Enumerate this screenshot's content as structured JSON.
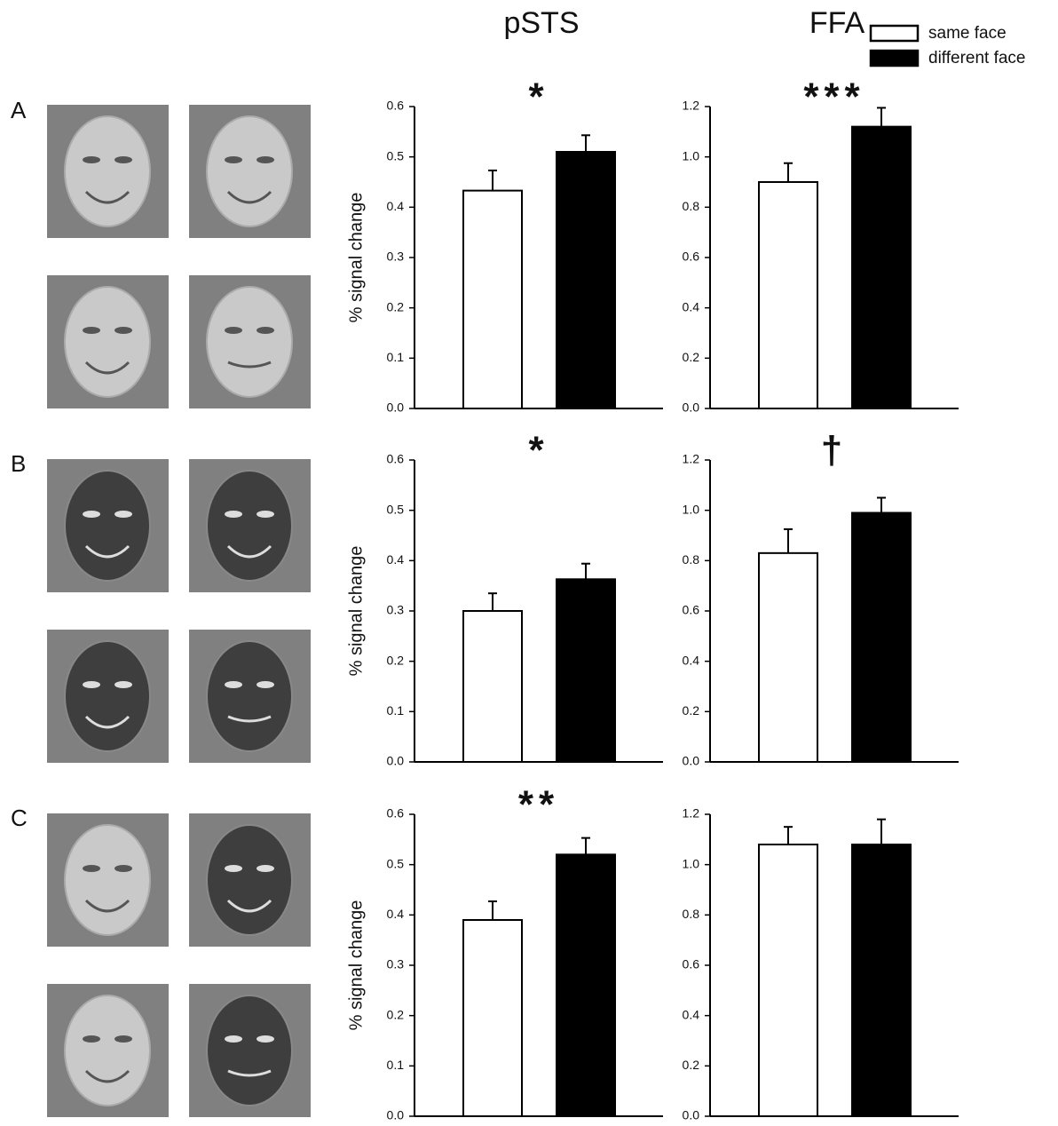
{
  "chart_data": [
    {
      "type": "bar",
      "title": "pSTS",
      "panel": "A",
      "annotation": "*",
      "ylabel": "% signal change",
      "series": [
        {
          "color": "#ffffff",
          "values": [
            0.433
          ],
          "errors": [
            0.04
          ]
        },
        {
          "color": "#000000",
          "values": [
            0.51
          ],
          "errors": [
            0.033
          ]
        }
      ],
      "ylim": [
        0,
        0.6
      ],
      "yticks": [
        {
          "value": 0,
          "label": "0.0"
        },
        0.1,
        0.2,
        0.3,
        0.4,
        0.5,
        0.6
      ]
    },
    {
      "type": "bar",
      "title": "FFA",
      "annotation": "***",
      "series": [
        {
          "name": "same face",
          "color": "#ffffff",
          "values": [
            0.9
          ],
          "errors": [
            0.075
          ]
        },
        {
          "name": "different face",
          "color": "#000000",
          "values": [
            1.12
          ],
          "errors": [
            0.075
          ]
        }
      ],
      "ylim": [
        0,
        1.2
      ],
      "yticks": [
        {
          "value": 0,
          "label": "0.0"
        },
        0.2,
        0.4,
        0.6,
        0.8,
        {
          "value": 1,
          "label": "1.0"
        },
        1.2
      ]
    },
    {
      "type": "bar",
      "panel": "B",
      "annotation": "*",
      "ylabel": "% signal change",
      "series": [
        {
          "color": "#ffffff",
          "values": [
            0.3
          ],
          "errors": [
            0.035
          ]
        },
        {
          "color": "#000000",
          "values": [
            0.363
          ],
          "errors": [
            0.031
          ]
        }
      ],
      "ylim": [
        0,
        0.6
      ],
      "yticks": [
        {
          "value": 0,
          "label": "0.0"
        },
        0.1,
        0.2,
        0.3,
        0.4,
        0.5,
        0.6
      ]
    },
    {
      "type": "bar",
      "annotation": "†",
      "series": [
        {
          "color": "#ffffff",
          "values": [
            0.83
          ],
          "errors": [
            0.095
          ]
        },
        {
          "color": "#000000",
          "values": [
            0.99
          ],
          "errors": [
            0.06
          ]
        }
      ],
      "ylim": [
        0,
        1.2
      ],
      "yticks": [
        {
          "value": 0,
          "label": "0.0"
        },
        0.2,
        0.4,
        0.6,
        0.8,
        {
          "value": 1,
          "label": "1.0"
        },
        1.2
      ]
    },
    {
      "type": "bar",
      "panel": "C",
      "annotation": "**",
      "ylabel": "% signal change",
      "series": [
        {
          "color": "#ffffff",
          "values": [
            0.39
          ],
          "errors": [
            0.037
          ]
        },
        {
          "color": "#000000",
          "values": [
            0.52
          ],
          "errors": [
            0.033
          ]
        }
      ],
      "ylim": [
        0,
        0.6
      ],
      "yticks": [
        {
          "value": 0,
          "label": "0.0"
        },
        0.1,
        0.2,
        0.3,
        0.4,
        0.5,
        0.6
      ]
    },
    {
      "type": "bar",
      "series": [
        {
          "color": "#ffffff",
          "values": [
            1.08
          ],
          "errors": [
            0.07
          ]
        },
        {
          "color": "#000000",
          "values": [
            1.08
          ],
          "errors": [
            0.1
          ]
        }
      ],
      "ylim": [
        0,
        1.2
      ],
      "yticks": [
        {
          "value": 0,
          "label": "0.0"
        },
        0.2,
        0.4,
        0.6,
        0.8,
        {
          "value": 1,
          "label": "1.0"
        },
        1.2
      ]
    }
  ]
}
